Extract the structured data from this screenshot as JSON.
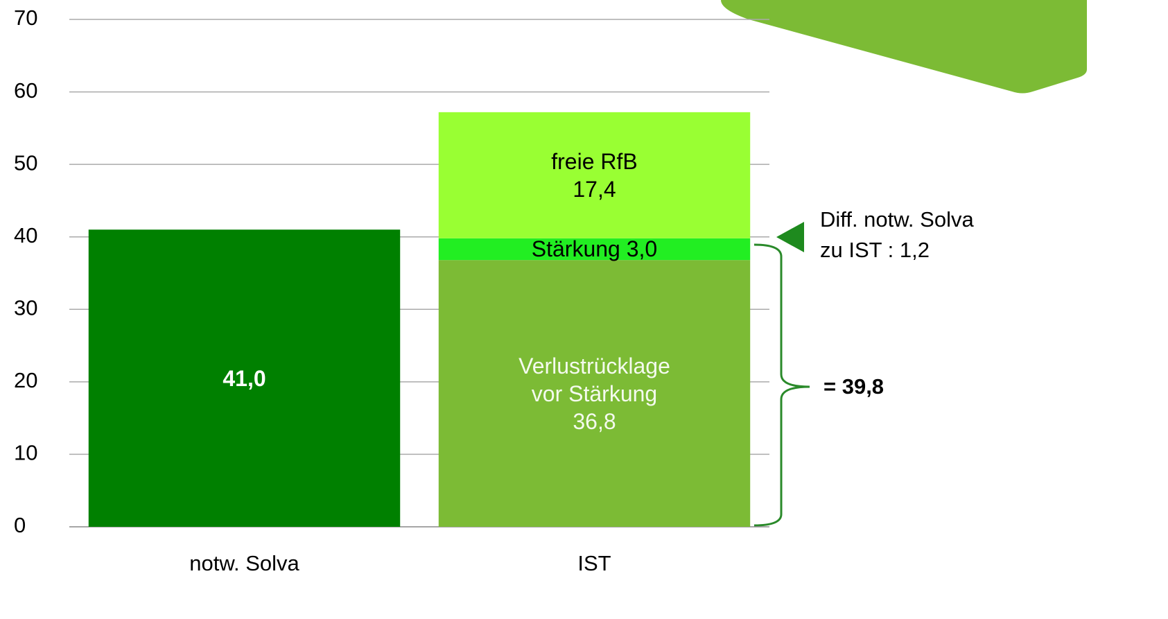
{
  "chart_data": {
    "type": "stacked_bar",
    "categories": [
      "notw. Solva",
      "IST"
    ],
    "series": [
      {
        "color": "#008000",
        "values": [
          41.0,
          null
        ],
        "value_labels": [
          "41,0",
          null
        ]
      },
      {
        "name": "Verlustrücklage vor Stärkung",
        "color": "#7cbb35",
        "values": [
          null,
          36.8
        ],
        "value_labels": [
          null,
          "36,8"
        ]
      },
      {
        "name": "Stärkung",
        "color": "#22ee22",
        "values": [
          null,
          3.0
        ],
        "value_labels": [
          null,
          "3,0"
        ]
      },
      {
        "name": "freie RfB",
        "color": "#99ff33",
        "values": [
          null,
          17.4
        ],
        "value_labels": [
          null,
          "17,4"
        ]
      }
    ],
    "ylim": [
      0,
      70
    ],
    "yticks": [
      0,
      10,
      20,
      30,
      40,
      50,
      60,
      70
    ],
    "grid": true,
    "annotations": [
      "Diff. notw. Solva zu IST : 1,2",
      "= 39,8"
    ]
  }
}
